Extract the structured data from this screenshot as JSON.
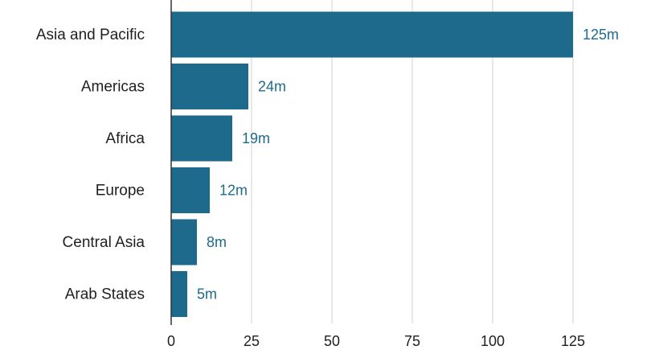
{
  "chart_data": {
    "type": "bar",
    "orientation": "horizontal",
    "categories": [
      "Asia and Pacific",
      "Americas",
      "Africa",
      "Europe",
      "Central Asia",
      "Arab States"
    ],
    "values": [
      125,
      24,
      19,
      12,
      8,
      5
    ],
    "value_labels": [
      "125m",
      "24m",
      "19m",
      "12m",
      "8m",
      "5m"
    ],
    "xlim": [
      0,
      125
    ],
    "x_ticks": [
      0,
      25,
      50,
      75,
      100,
      125
    ],
    "x_tick_labels": [
      "0",
      "25",
      "50",
      "75",
      "100",
      "125"
    ],
    "title": "",
    "xlabel": "",
    "ylabel": "",
    "grid": "vertical",
    "legend": "none",
    "colors": {
      "bar": "#1d6a8d",
      "label": "#1d6a8d",
      "grid": "#d9d9d9",
      "axis": "#333333"
    }
  }
}
